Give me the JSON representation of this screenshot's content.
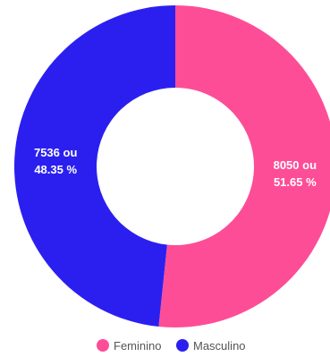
{
  "chart_data": {
    "type": "pie",
    "variant": "donut",
    "categories": [
      "Feminino",
      "Masculino"
    ],
    "values": [
      8050,
      7536
    ],
    "percents": [
      51.65,
      48.35
    ],
    "colors": [
      "#fe4d97",
      "#2b1ff0"
    ],
    "labels": [
      {
        "line1": "8050 ou",
        "line2": "51.65 %"
      },
      {
        "line1": "7536 ou",
        "line2": "48.35 %"
      }
    ],
    "legend": {
      "placement": "bottom",
      "items": [
        {
          "label": "Feminino",
          "color": "#fe4d97"
        },
        {
          "label": "Masculino",
          "color": "#2b1ff0"
        }
      ]
    }
  }
}
